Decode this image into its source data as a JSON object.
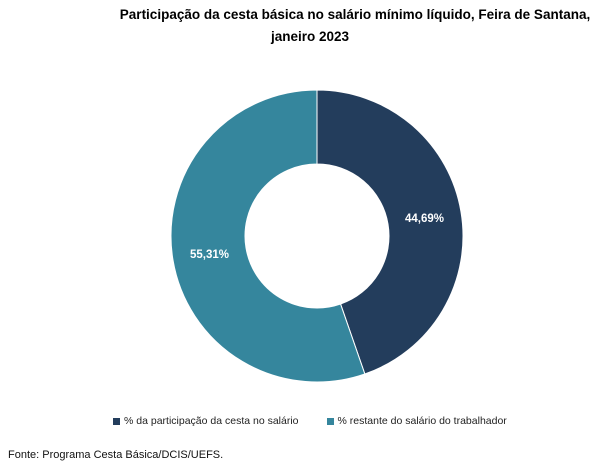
{
  "chart_data": {
    "type": "pie",
    "donut": true,
    "title_line1": "Participação da cesta básica no salário mínimo líquido, Feira de Santana,",
    "title_line2": "janeiro  2023",
    "series": [
      {
        "name": "% da participação da cesta no salário",
        "value": 44.69,
        "label": "44,69%",
        "color": "#233d5c"
      },
      {
        "name": "% restante do salário do trabalhador",
        "value": 55.31,
        "label": "55,31%",
        "color": "#35869d"
      }
    ],
    "legend_position": "bottom",
    "source": "Fonte: Programa Cesta Básica/DCIS/UEFS."
  }
}
